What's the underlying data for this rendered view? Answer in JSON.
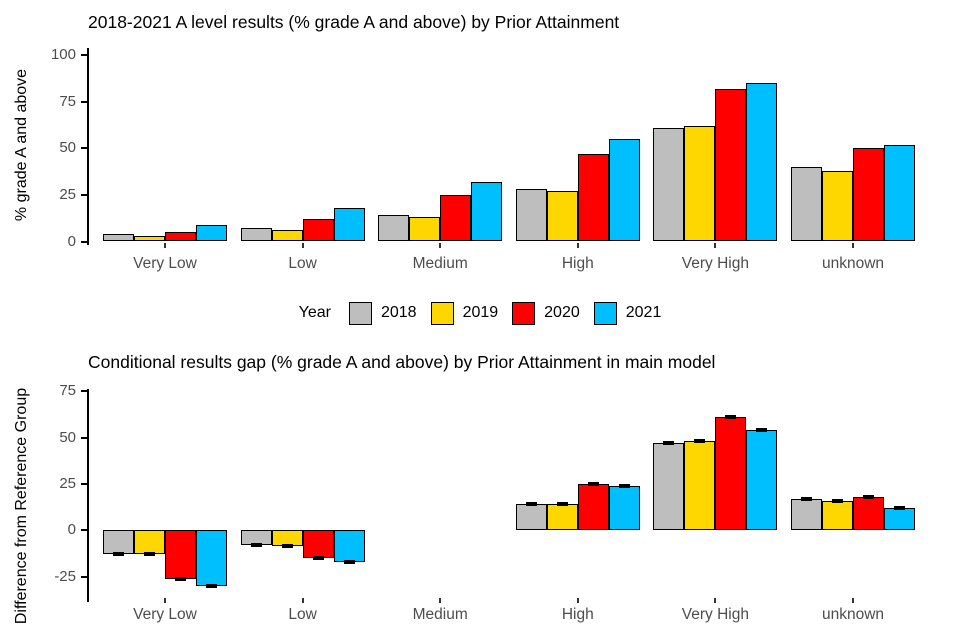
{
  "legend": {
    "label": "Year",
    "items": [
      {
        "label": "2018",
        "color": "#BEBEBE"
      },
      {
        "label": "2019",
        "color": "#FFD700"
      },
      {
        "label": "2020",
        "color": "#FF0000"
      },
      {
        "label": "2021",
        "color": "#00BFFF"
      }
    ]
  },
  "colors": {
    "bar_outline": "#000000",
    "axis": "#000000",
    "tick_text": "#4d4d4d",
    "title_text": "#000000"
  },
  "chart_data": [
    {
      "type": "bar",
      "title": "2018-2021 A level results (% grade A and above) by Prior Attainment",
      "xlabel": "",
      "ylabel": "% grade A and above",
      "categories": [
        "Very Low",
        "Low",
        "Medium",
        "High",
        "Very High",
        "unknown"
      ],
      "yticks": [
        0,
        25,
        50,
        75,
        100
      ],
      "ylim": [
        0,
        100
      ],
      "grid": false,
      "legend_position": "below (shared)",
      "series": [
        {
          "name": "2018",
          "color": "#BEBEBE",
          "values": [
            4,
            7,
            14,
            28,
            61,
            40
          ]
        },
        {
          "name": "2019",
          "color": "#FFD700",
          "values": [
            3,
            6,
            13,
            27,
            62,
            38
          ]
        },
        {
          "name": "2020",
          "color": "#FF0000",
          "values": [
            5,
            12,
            25,
            47,
            82,
            50
          ]
        },
        {
          "name": "2021",
          "color": "#00BFFF",
          "values": [
            9,
            18,
            32,
            55,
            85,
            52
          ]
        }
      ]
    },
    {
      "type": "bar",
      "title": "Conditional results gap (% grade A and above) by Prior Attainment in main model",
      "xlabel": "",
      "ylabel": "Difference from Reference Group",
      "categories": [
        "Very Low",
        "Low",
        "Medium",
        "High",
        "Very High",
        "unknown"
      ],
      "yticks": [
        -25,
        0,
        25,
        50,
        75
      ],
      "ylim": [
        -32,
        75
      ],
      "grid": false,
      "reference_category": "Medium",
      "error_bars": true,
      "error_halfwidth": 1,
      "series": [
        {
          "name": "2018",
          "color": "#BEBEBE",
          "values": [
            -13,
            -8,
            0,
            14,
            47,
            17
          ]
        },
        {
          "name": "2019",
          "color": "#FFD700",
          "values": [
            -13,
            -8.5,
            0,
            14.5,
            48,
            16
          ]
        },
        {
          "name": "2020",
          "color": "#FF0000",
          "values": [
            -26,
            -15,
            0,
            25,
            61,
            18
          ]
        },
        {
          "name": "2021",
          "color": "#00BFFF",
          "values": [
            -30,
            -17,
            0,
            24,
            54,
            12
          ]
        }
      ]
    }
  ]
}
